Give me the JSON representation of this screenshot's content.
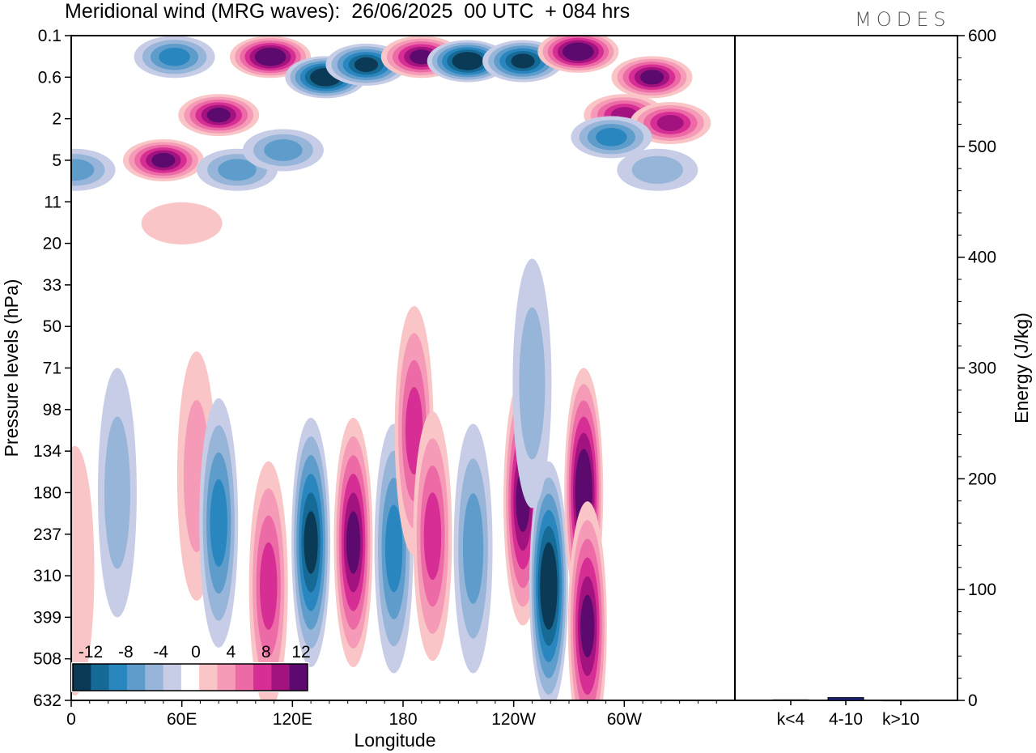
{
  "title": "Meridional wind (MRG waves):  26/06/2025  00 UTC  + 084 hrs",
  "logo": "MODES",
  "chart_data": [
    {
      "type": "heatmap",
      "xlabel": "Longitude",
      "ylabel": "Pressure levels (hPa)",
      "x_ticks": [
        "0",
        "60E",
        "120E",
        "180",
        "120W",
        "60W"
      ],
      "y_ticks": [
        "0.1",
        "0.6",
        "2",
        "5",
        "11",
        "20",
        "33",
        "50",
        "71",
        "98",
        "134",
        "180",
        "237",
        "310",
        "399",
        "508",
        "632"
      ],
      "colorbar": {
        "labels": [
          "-12",
          "-8",
          "-4",
          "0",
          "4",
          "8",
          "12"
        ],
        "levels": [
          -14,
          -12,
          -10,
          -8,
          -6,
          -4,
          -2,
          2,
          4,
          6,
          8,
          10,
          12,
          14
        ],
        "colors": [
          "#0b3a57",
          "#166a96",
          "#2a86bf",
          "#5e9ccb",
          "#96b5d8",
          "#c7cde6",
          "#ffffff",
          "#f9c5c6",
          "#f59bb7",
          "#ec6aa6",
          "#d62e94",
          "#a2137f",
          "#5c0a6e"
        ]
      },
      "blobs": [
        {
          "lon": 56,
          "lev": 0.25,
          "v": -8
        },
        {
          "lon": 80,
          "lev": 1.8,
          "v": 12
        },
        {
          "lon": 108,
          "lev": 0.25,
          "v": 14
        },
        {
          "lon": 138,
          "lev": 0.6,
          "v": -14
        },
        {
          "lon": 160,
          "lev": 0.35,
          "v": -12
        },
        {
          "lon": 190,
          "lev": 0.25,
          "v": 12
        },
        {
          "lon": 215,
          "lev": 0.3,
          "v": -14
        },
        {
          "lon": 245,
          "lev": 0.3,
          "v": -12
        },
        {
          "lon": 275,
          "lev": 0.2,
          "v": 14
        },
        {
          "lon": 300,
          "lev": 1.8,
          "v": 10
        },
        {
          "lon": 315,
          "lev": 0.6,
          "v": 12
        },
        {
          "lon": 325,
          "lev": 2.2,
          "v": 10
        },
        {
          "lon": 293,
          "lev": 3.0,
          "v": -8
        },
        {
          "lon": 50,
          "lev": 5,
          "v": 12
        },
        {
          "lon": 90,
          "lev": 6,
          "v": -6
        },
        {
          "lon": 115,
          "lev": 4,
          "v": -6
        },
        {
          "lon": 2,
          "lev": 6,
          "v": -6
        },
        {
          "lon": 318,
          "lev": 6,
          "v": -4
        },
        {
          "lon": 60,
          "lev": 15,
          "v": 2
        },
        {
          "lon": 25,
          "lev": 180,
          "v": -4
        },
        {
          "lon": 68,
          "lev": 160,
          "v": 4
        },
        {
          "lon": 80,
          "lev": 220,
          "v": -8
        },
        {
          "lon": 107,
          "lev": 330,
          "v": 8
        },
        {
          "lon": 130,
          "lev": 250,
          "v": -12
        },
        {
          "lon": 153,
          "lev": 250,
          "v": 12
        },
        {
          "lon": 175,
          "lev": 260,
          "v": -8
        },
        {
          "lon": 186,
          "lev": 115,
          "v": 8
        },
        {
          "lon": 196,
          "lev": 240,
          "v": 8
        },
        {
          "lon": 218,
          "lev": 260,
          "v": -6
        },
        {
          "lon": 245,
          "lev": 190,
          "v": 12
        },
        {
          "lon": 259,
          "lev": 330,
          "v": -14
        },
        {
          "lon": 278,
          "lev": 180,
          "v": 14
        },
        {
          "lon": 280,
          "lev": 420,
          "v": 12
        },
        {
          "lon": 250,
          "lev": 80,
          "v": -4
        },
        {
          "lon": 2,
          "lev": 300,
          "v": 2
        }
      ]
    },
    {
      "type": "bar",
      "ylabel": "Energy (J/kg)",
      "categories": [
        "k<4",
        "4-10",
        "k>10"
      ],
      "values": [
        0.5,
        2.5,
        0.3
      ],
      "ylim": [
        0,
        600
      ],
      "y_ticks": [
        "0",
        "100",
        "200",
        "300",
        "400",
        "500",
        "600"
      ],
      "bar_color": "#1a237e"
    }
  ]
}
